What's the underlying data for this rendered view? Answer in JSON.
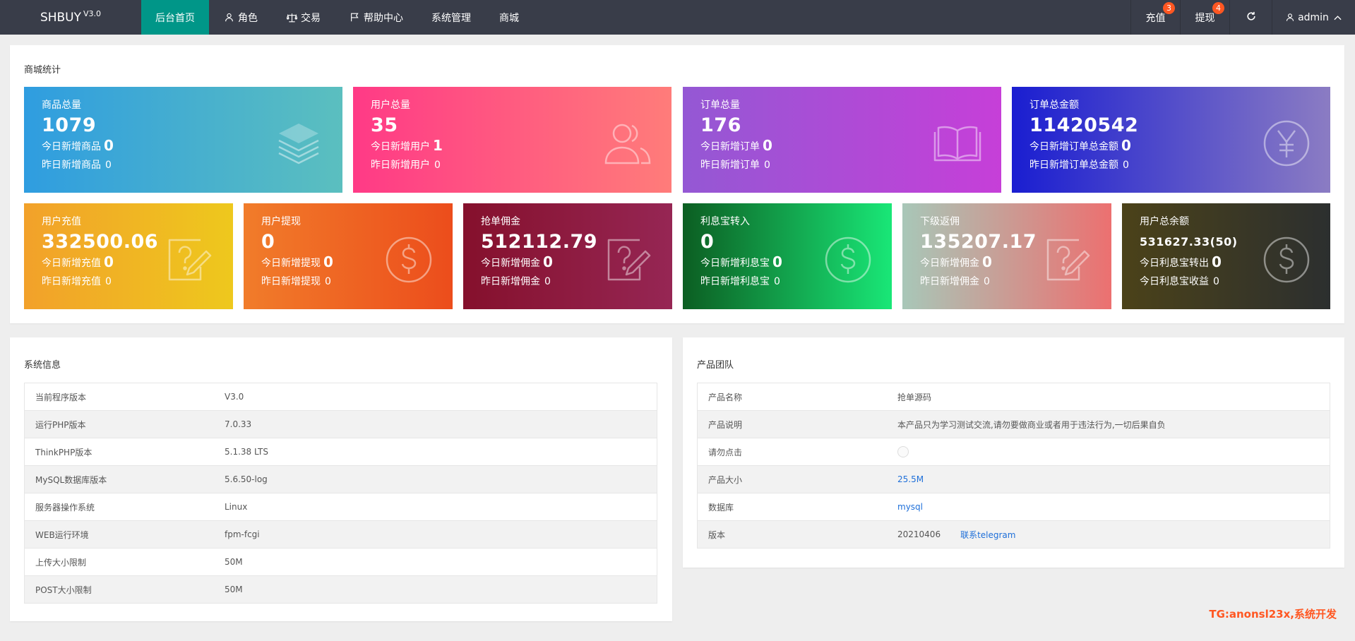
{
  "header": {
    "logo": "SHBUY",
    "logo_version": "V3.0",
    "nav": [
      {
        "label": "后台首页",
        "icon": "home"
      },
      {
        "label": "角色",
        "icon": "user-icon"
      },
      {
        "label": "交易",
        "icon": "scale-icon"
      },
      {
        "label": "帮助中心",
        "icon": "flag-icon"
      },
      {
        "label": "系统管理",
        "icon": ""
      },
      {
        "label": "商城",
        "icon": ""
      }
    ],
    "recharge_label": "充值",
    "recharge_badge": "3",
    "withdraw_label": "提现",
    "withdraw_badge": "4",
    "user": "admin"
  },
  "stats": {
    "title": "商城统计",
    "cards": [
      {
        "title": "商品总量",
        "value": "1079",
        "today_label": "今日新增商品",
        "today_value": "0",
        "second_label": "昨日新增商品",
        "second_value": "0",
        "icon": "layers-icon",
        "color": "#2f9de0"
      },
      {
        "title": "用户总量",
        "value": "35",
        "today_label": "今日新增用户",
        "today_value": "1",
        "second_label": "昨日新增用户",
        "second_value": "0",
        "icon": "users-icon",
        "color": "#ff3a86"
      },
      {
        "title": "订单总量",
        "value": "176",
        "today_label": "今日新增订单",
        "today_value": "0",
        "second_label": "昨日新增订单",
        "second_value": "0",
        "icon": "book-icon",
        "color": "#9458d4"
      },
      {
        "title": "订单总金额",
        "value": "11420542",
        "today_label": "今日新增订单总金额",
        "today_value": "0",
        "second_label": "昨日新增订单总金额",
        "second_value": "0",
        "icon": "yen-circle-icon",
        "color": "#1a1ed1"
      },
      {
        "title": "用户充值",
        "value": "332500.06",
        "today_label": "今日新增充值",
        "today_value": "0",
        "second_label": "昨日新增充值",
        "second_value": "0",
        "icon": "question-pad-icon",
        "color": "#f2a12a"
      },
      {
        "title": "用户提现",
        "value": "0",
        "today_label": "今日新增提现",
        "today_value": "0",
        "second_label": "昨日新增提现",
        "second_value": "0",
        "icon": "dollar-circle-icon",
        "color": "#f17c2a"
      },
      {
        "title": "抢单佣金",
        "value": "512112.79",
        "today_label": "今日新增佣金",
        "today_value": "0",
        "second_label": "昨日新增佣金",
        "second_value": "0",
        "icon": "question-pad-icon",
        "color": "#85102c"
      },
      {
        "title": "利息宝转入",
        "value": "0",
        "today_label": "今日新增利息宝",
        "today_value": "0",
        "second_label": "昨日新增利息宝",
        "second_value": "0",
        "icon": "dollar-circle-icon",
        "color": "#0c5e22"
      },
      {
        "title": "下级返佣",
        "value": "135207.17",
        "today_label": "今日新增佣金",
        "today_value": "0",
        "second_label": "昨日新增佣金",
        "second_value": "0",
        "icon": "question-pad-icon",
        "color": "#ec7070"
      },
      {
        "title": "用户总余额",
        "value": "531627.33(50)",
        "today_label": "今日利息宝转出",
        "today_value": "0",
        "second_label": "今日利息宝收益",
        "second_value": "0",
        "icon": "dollar-circle-icon",
        "color": "#4b4219"
      }
    ]
  },
  "system_info": {
    "title": "系统信息",
    "rows": [
      {
        "key": "当前程序版本",
        "value": "V3.0"
      },
      {
        "key": "运行PHP版本",
        "value": "7.0.33"
      },
      {
        "key": "ThinkPHP版本",
        "value": "5.1.38 LTS"
      },
      {
        "key": "MySQL数据库版本",
        "value": "5.6.50-log"
      },
      {
        "key": "服务器操作系统",
        "value": "Linux"
      },
      {
        "key": "WEB运行环境",
        "value": "fpm-fcgi"
      },
      {
        "key": "上传大小限制",
        "value": "50M"
      },
      {
        "key": "POST大小限制",
        "value": "50M"
      }
    ]
  },
  "product_team": {
    "title": "产品团队",
    "rows": [
      {
        "key": "产品名称",
        "value": "抢单源码"
      },
      {
        "key": "产品说明",
        "value": "本产品只为学习测试交流,请勿要做商业或者用于违法行为,一切后果自负"
      },
      {
        "key": "请勿点击",
        "value": ""
      },
      {
        "key": "产品大小",
        "value": "25.5M"
      },
      {
        "key": "数据库",
        "value": "mysql"
      },
      {
        "key": "版本",
        "value": "20210406",
        "extra": "联系telegram"
      }
    ]
  },
  "watermark": "TG:anonsl23x,系统开发"
}
